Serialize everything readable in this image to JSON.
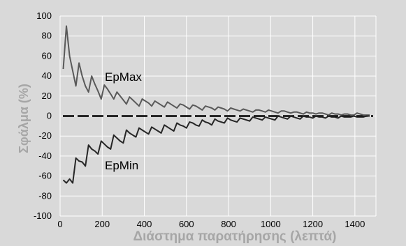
{
  "chart_data": {
    "type": "line",
    "xlabel": "Διάστημα παρατήρησης (λεπτά)",
    "ylabel": "Σφάλμα (%)",
    "xlim": [
      0,
      1500
    ],
    "ylim": [
      -100,
      100
    ],
    "xticks": [
      0,
      200,
      400,
      600,
      800,
      1000,
      1200,
      1400
    ],
    "yticks": [
      -100,
      -80,
      -60,
      -40,
      -20,
      0,
      20,
      40,
      60,
      80,
      100
    ],
    "grid": true,
    "colors": {
      "background": "#d9d9d9",
      "grid": "#ffffff",
      "epmax": "#595959",
      "epmin": "#262626",
      "zero_line": "#000000",
      "axis_title": "#a6a6a6"
    },
    "series": [
      {
        "name": "EpMax",
        "label": "EpMax",
        "x": [
          15,
          30,
          45,
          60,
          75,
          90,
          105,
          120,
          135,
          150,
          165,
          180,
          195,
          210,
          225,
          240,
          255,
          270,
          285,
          300,
          315,
          330,
          345,
          360,
          375,
          390,
          405,
          420,
          435,
          450,
          465,
          480,
          495,
          510,
          525,
          540,
          555,
          570,
          585,
          600,
          615,
          630,
          645,
          660,
          675,
          690,
          705,
          720,
          735,
          750,
          765,
          780,
          795,
          810,
          825,
          840,
          855,
          870,
          885,
          900,
          915,
          930,
          945,
          960,
          975,
          990,
          1005,
          1020,
          1035,
          1050,
          1065,
          1080,
          1095,
          1110,
          1125,
          1140,
          1155,
          1170,
          1185,
          1200,
          1215,
          1230,
          1245,
          1260,
          1275,
          1290,
          1305,
          1320,
          1335,
          1350,
          1365,
          1380,
          1395,
          1410,
          1425,
          1440,
          1455,
          1470
        ],
        "values": [
          47,
          90,
          60,
          45,
          30,
          53,
          40,
          30,
          24,
          40,
          32,
          25,
          17,
          31,
          27,
          22,
          17,
          24,
          20,
          16,
          12,
          19,
          16,
          13,
          10,
          17,
          15,
          13,
          10,
          15,
          13,
          11,
          9,
          14,
          12,
          10,
          8,
          12,
          11,
          9,
          7,
          11,
          10,
          8,
          6,
          10,
          9,
          8,
          6,
          9,
          8,
          7,
          5,
          8,
          7,
          6,
          5,
          7,
          6,
          5,
          4,
          6,
          6,
          5,
          4,
          6,
          5,
          4,
          3,
          5,
          5,
          4,
          3,
          4,
          4,
          3,
          2,
          4,
          3,
          3,
          2,
          3,
          3,
          2,
          1,
          3,
          2,
          2,
          1,
          2,
          2,
          1,
          1,
          3,
          2,
          1,
          1,
          1
        ]
      },
      {
        "name": "EpMin",
        "label": "EpMin",
        "x": [
          15,
          30,
          45,
          60,
          75,
          90,
          105,
          120,
          135,
          150,
          165,
          180,
          195,
          210,
          225,
          240,
          255,
          270,
          285,
          300,
          315,
          330,
          345,
          360,
          375,
          390,
          405,
          420,
          435,
          450,
          465,
          480,
          495,
          510,
          525,
          540,
          555,
          570,
          585,
          600,
          615,
          630,
          645,
          660,
          675,
          690,
          705,
          720,
          735,
          750,
          765,
          780,
          795,
          810,
          825,
          840,
          855,
          870,
          885,
          900,
          915,
          930,
          945,
          960,
          975,
          990,
          1005,
          1020,
          1035,
          1050,
          1065,
          1080,
          1095,
          1110,
          1125,
          1140,
          1155,
          1170,
          1185,
          1200,
          1215,
          1230,
          1245,
          1260,
          1275,
          1290,
          1305,
          1320,
          1335,
          1350,
          1365,
          1380,
          1395,
          1410,
          1425,
          1440,
          1455,
          1470
        ],
        "values": [
          -64,
          -67,
          -63,
          -67,
          -42,
          -45,
          -46,
          -50,
          -29,
          -33,
          -35,
          -38,
          -25,
          -28,
          -31,
          -33,
          -19,
          -22,
          -25,
          -27,
          -14,
          -17,
          -19,
          -21,
          -12,
          -14,
          -16,
          -18,
          -11,
          -13,
          -15,
          -17,
          -9,
          -11,
          -13,
          -15,
          -7,
          -9,
          -10,
          -12,
          -6,
          -7,
          -9,
          -10,
          -4,
          -6,
          -7,
          -9,
          -3,
          -5,
          -6,
          -7,
          -2,
          -4,
          -5,
          -6,
          -2,
          -3,
          -4,
          -5,
          -1,
          -2,
          -3,
          -4,
          -1,
          -2,
          -3,
          -4,
          0,
          -1,
          -2,
          -3,
          0,
          -1,
          -2,
          -3,
          0,
          -1,
          -1,
          -2,
          0,
          -1,
          -1,
          -2,
          0,
          -1,
          -1,
          -2,
          0,
          -1,
          -1,
          -1,
          0,
          -1,
          -1,
          -1,
          0,
          0
        ]
      }
    ]
  }
}
